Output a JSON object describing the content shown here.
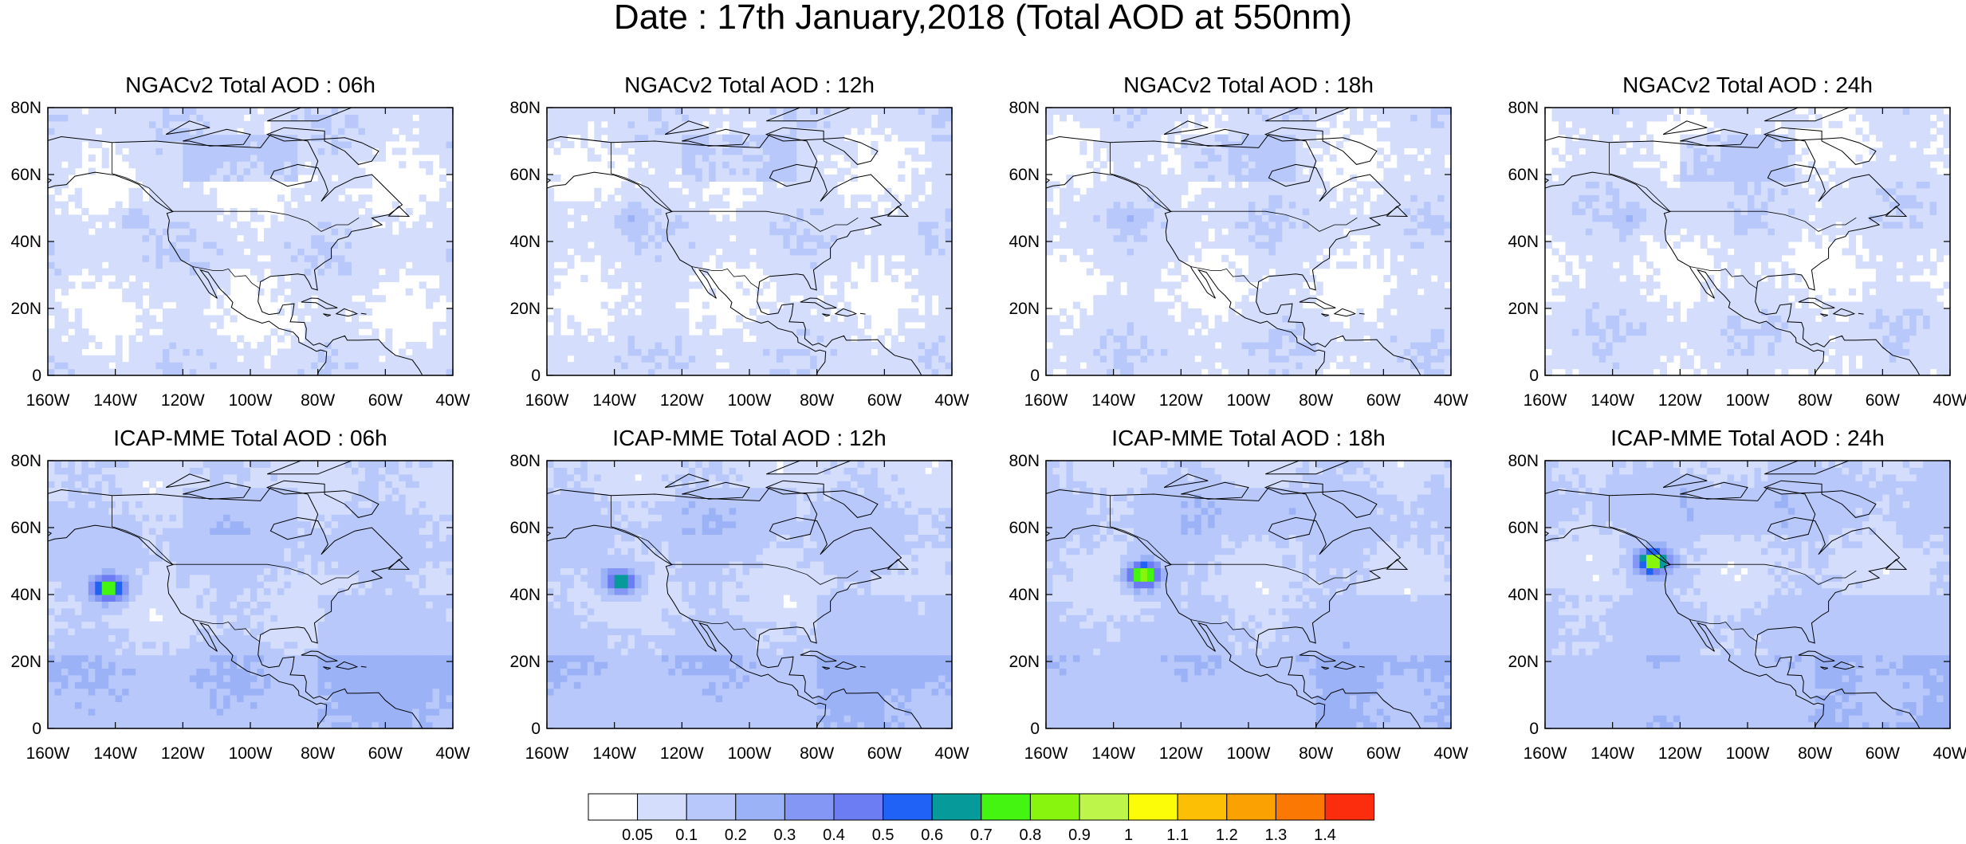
{
  "title": "Date : 17th January,2018 (Total AOD at 550nm)",
  "map": {
    "lon_range": [
      -160,
      -40
    ],
    "lat_range": [
      0,
      80
    ],
    "x_ticks": [
      "160W",
      "140W",
      "120W",
      "100W",
      "80W",
      "60W",
      "40W"
    ],
    "y_ticks": [
      "0",
      "20N",
      "40N",
      "60N",
      "80N"
    ],
    "variable": "Total AOD at 550nm"
  },
  "panels": [
    {
      "title": "NGACv2 Total AOD : 06h",
      "model": "NGACv2",
      "hour": "06h"
    },
    {
      "title": "NGACv2 Total AOD : 12h",
      "model": "NGACv2",
      "hour": "12h"
    },
    {
      "title": "NGACv2 Total AOD : 18h",
      "model": "NGACv2",
      "hour": "18h"
    },
    {
      "title": "NGACv2 Total AOD : 24h",
      "model": "NGACv2",
      "hour": "24h"
    },
    {
      "title": "ICAP-MME Total AOD : 06h",
      "model": "ICAP-MME",
      "hour": "06h",
      "plume": {
        "lon": -142,
        "lat": 42,
        "peak_aod": 0.75
      }
    },
    {
      "title": "ICAP-MME Total AOD : 12h",
      "model": "ICAP-MME",
      "hour": "12h",
      "plume": {
        "lon": -138,
        "lat": 44,
        "peak_aod": 0.6
      }
    },
    {
      "title": "ICAP-MME Total AOD : 18h",
      "model": "ICAP-MME",
      "hour": "18h",
      "plume": {
        "lon": -131,
        "lat": 46,
        "peak_aod": 0.8
      }
    },
    {
      "title": "ICAP-MME Total AOD : 24h",
      "model": "ICAP-MME",
      "hour": "24h",
      "plume": {
        "lon": -128,
        "lat": 50,
        "peak_aod": 0.8
      }
    }
  ],
  "colorbar": {
    "colors": [
      "#ffffff",
      "#d4defc",
      "#b8c8fa",
      "#9cb2f7",
      "#8597f5",
      "#6c7cf2",
      "#1f62f5",
      "#069a9a",
      "#44f511",
      "#87f50d",
      "#bef54b",
      "#fdfc08",
      "#fcbf06",
      "#fba102",
      "#fb7803",
      "#fb2d0d"
    ],
    "labels": [
      "0.05",
      "0.1",
      "0.2",
      "0.3",
      "0.4",
      "0.5",
      "0.6",
      "0.7",
      "0.8",
      "0.9",
      "1",
      "1.1",
      "1.2",
      "1.3",
      "1.4"
    ]
  }
}
